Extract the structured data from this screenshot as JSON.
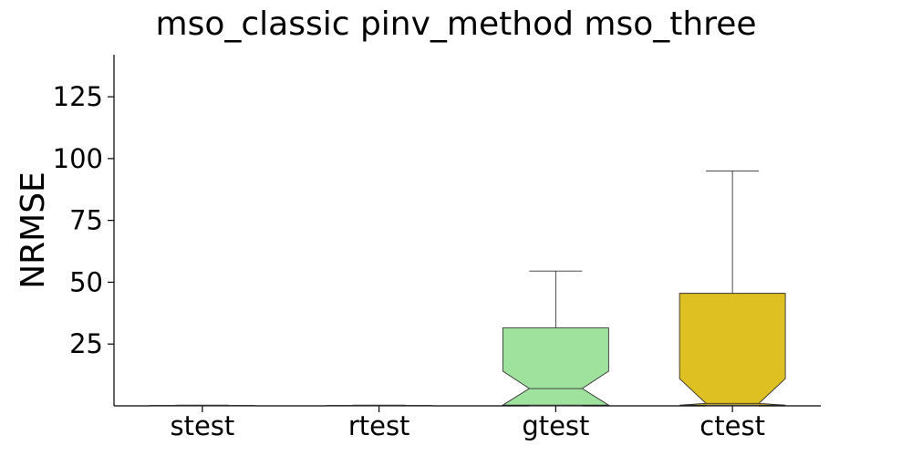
{
  "chart_data": {
    "type": "box",
    "title": "mso_classic pinv_method mso_three",
    "xlabel": "",
    "ylabel": "NRMSE",
    "ylim": [
      0,
      142
    ],
    "yticks": [
      25,
      50,
      75,
      100,
      125
    ],
    "notched": true,
    "grid": false,
    "categories": [
      "stest",
      "rtest",
      "gtest",
      "ctest"
    ],
    "boxes": [
      {
        "name": "stest",
        "min": 0,
        "q1": 0,
        "median": 0.1,
        "q3": 0.2,
        "max": 0.3,
        "notch_low": 0,
        "notch_high": 0.2,
        "color": "#3a56c9"
      },
      {
        "name": "rtest",
        "min": 0,
        "q1": 0,
        "median": 0.1,
        "q3": 0.2,
        "max": 0.3,
        "notch_low": 0,
        "notch_high": 0.2,
        "color": "#d93b3b"
      },
      {
        "name": "gtest",
        "min": 0,
        "q1": 0.3,
        "median": 7,
        "q3": 31.5,
        "max": 54.5,
        "notch_low": 0.3,
        "notch_high": 14,
        "color": "#9ee29e"
      },
      {
        "name": "ctest",
        "min": 0,
        "q1": 0.3,
        "median": 1,
        "q3": 45.5,
        "max": 95,
        "notch_low": 0.3,
        "notch_high": 11,
        "color": "#dfc023"
      }
    ]
  }
}
